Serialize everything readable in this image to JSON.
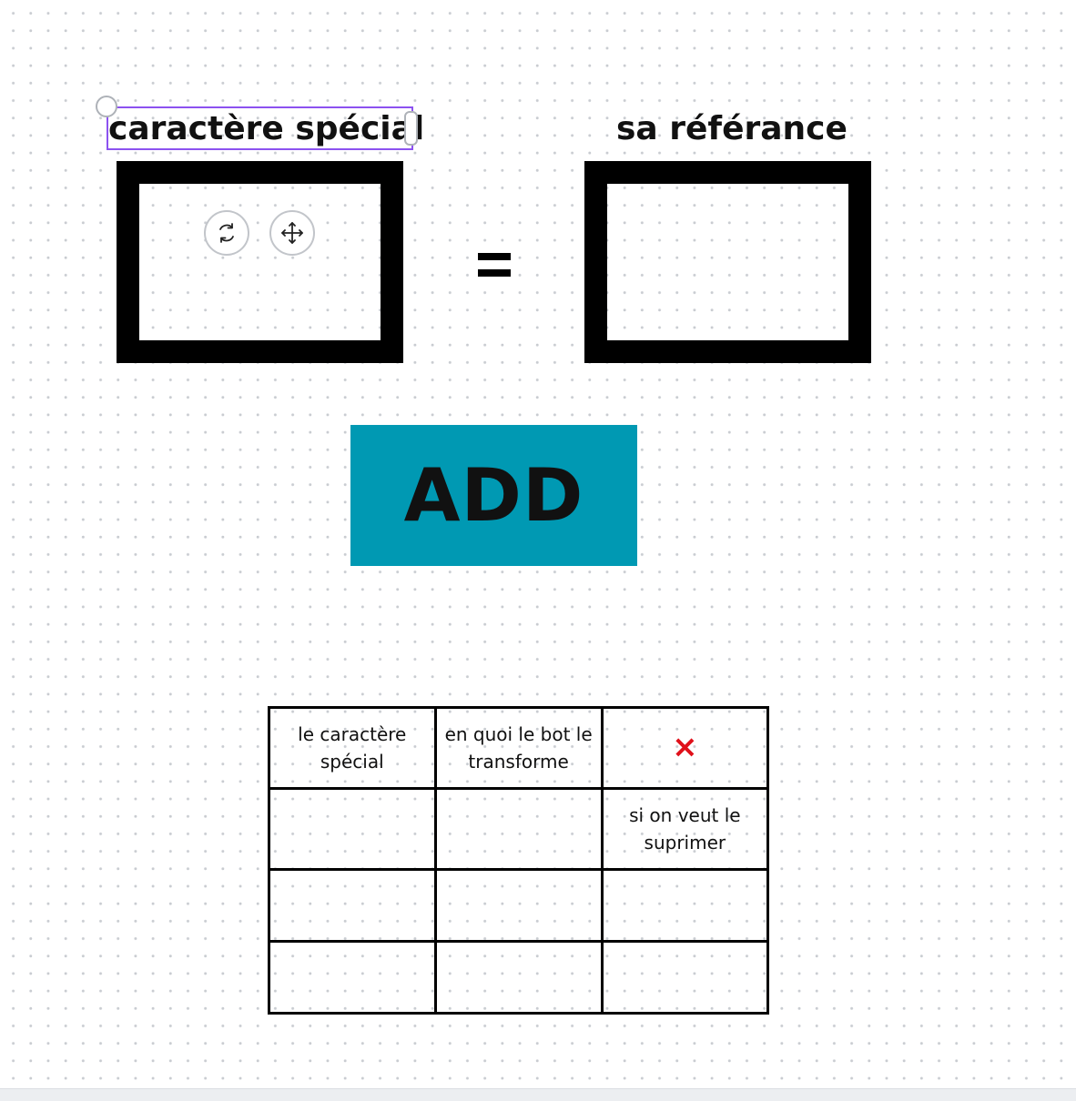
{
  "form": {
    "left_title": "caractère spécial",
    "right_title": "sa référance",
    "equals": "=",
    "add_label": "ADD"
  },
  "table": {
    "header": {
      "col1": "le caractère spécial",
      "col2": "en quoi le bot le transforme",
      "col3_icon": "×"
    },
    "rows": [
      [
        "",
        "",
        "si on veut le suprimer"
      ],
      [
        "",
        "",
        ""
      ],
      [
        "",
        "",
        ""
      ]
    ]
  },
  "colors": {
    "accent": "#0099b3",
    "selection": "#8c52f0",
    "delete": "#e0101a"
  },
  "icons": {
    "rotate": "rotate-icon",
    "move": "move-icon",
    "delete": "close-icon"
  }
}
